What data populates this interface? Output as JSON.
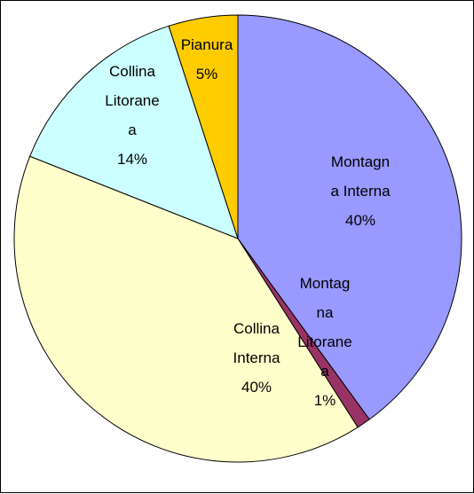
{
  "chart_data": {
    "type": "pie",
    "categories": [
      "Montagna Interna",
      "Montagna Litoranea",
      "Collina Interna",
      "Collina Litoranea",
      "Pianura"
    ],
    "values": [
      40,
      1,
      40,
      14,
      5
    ],
    "value_labels": [
      "40%",
      "1%",
      "40%",
      "14%",
      "5%"
    ],
    "colors": [
      "#9999ff",
      "#993366",
      "#ffffcc",
      "#ccffff",
      "#ffcc00"
    ]
  }
}
